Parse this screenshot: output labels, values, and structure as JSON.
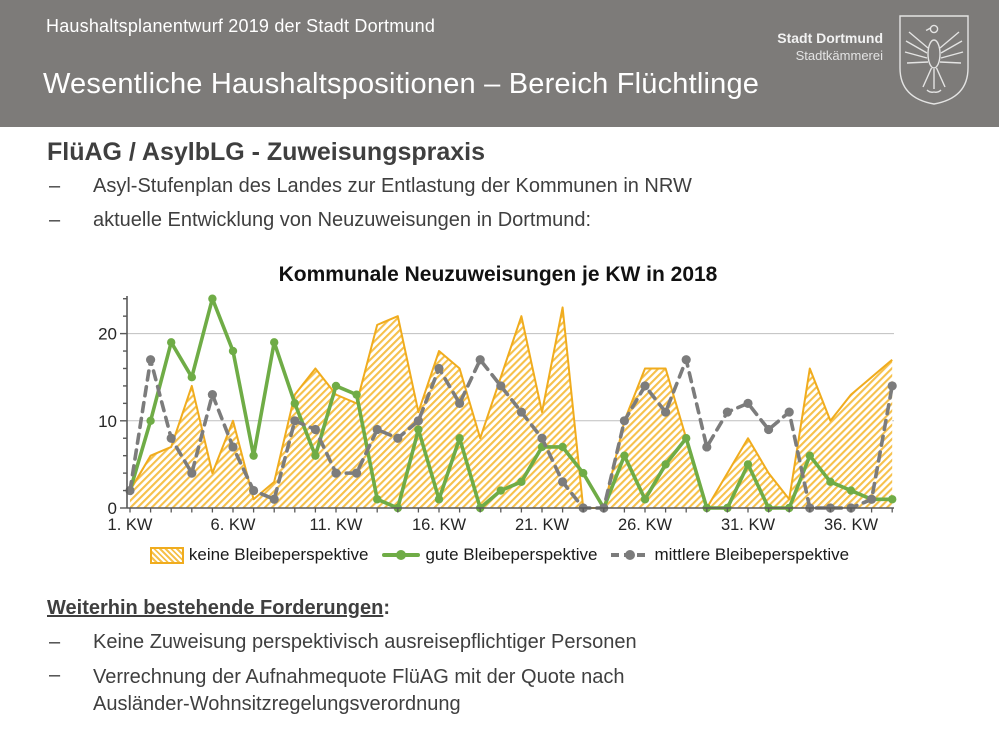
{
  "header": {
    "eyebrow": "Haushaltsplanentwurf 2019 der Stadt Dortmund",
    "title": "Wesentliche Haushaltspositionen – Bereich Flüchtlinge",
    "logo": {
      "line1": "Stadt Dortmund",
      "line2": "Stadtkämmerei",
      "crest_icon": "dortmund-eagle-crest"
    }
  },
  "content": {
    "heading": "FlüAG / AsylbLG - Zuweisungspraxis",
    "bullet_dash": "–",
    "bullets": [
      "Asyl-Stufenplan des Landes zur Entlastung der Kommunen in NRW",
      "aktuelle Entwicklung von Neuzuweisungen in Dortmund:"
    ]
  },
  "chart_data": {
    "type": "area+line",
    "title": "Kommunale Neuzuweisungen je KW in 2018",
    "xlabel": "",
    "ylabel": "",
    "x": [
      1,
      2,
      3,
      4,
      5,
      6,
      7,
      8,
      9,
      10,
      11,
      12,
      13,
      14,
      15,
      16,
      17,
      18,
      19,
      20,
      21,
      22,
      23,
      24,
      25,
      26,
      27,
      28,
      29,
      30,
      31,
      32,
      33,
      34,
      35,
      36,
      37,
      38
    ],
    "x_tick_labels": [
      "1. KW",
      "6. KW",
      "11. KW",
      "16. KW",
      "21. KW",
      "26. KW",
      "31. KW",
      "36. KW"
    ],
    "x_tick_weeks": [
      1,
      6,
      11,
      16,
      21,
      26,
      31,
      36
    ],
    "y_ticks": [
      0,
      10,
      20
    ],
    "y_minor_step": 2,
    "ylim": [
      0,
      24.5
    ],
    "grid_y": [
      10,
      20
    ],
    "grid_color": "#bfbfbf",
    "axis_color": "#595959",
    "legend_position": "bottom",
    "series": [
      {
        "name": "keine Bleibeperspektive",
        "type": "area",
        "style": "hatched",
        "color": "#f0ac1e",
        "hatch_color": "#f6c14b",
        "values": [
          2,
          6,
          7,
          14,
          4,
          10,
          1,
          3,
          13,
          16,
          13,
          12,
          21,
          22,
          11,
          18,
          16,
          8,
          15,
          22,
          11,
          23,
          0,
          0,
          10,
          16,
          16,
          8,
          0,
          4,
          8,
          4,
          1,
          16,
          10,
          13,
          15,
          17
        ]
      },
      {
        "name": "gute Bleibeperspektive",
        "type": "line",
        "style": "solid",
        "color": "#6fac46",
        "values": [
          2,
          10,
          19,
          15,
          24,
          18,
          6,
          19,
          12,
          6,
          14,
          13,
          1,
          0,
          9,
          1,
          8,
          0,
          2,
          3,
          7,
          7,
          4,
          0,
          6,
          1,
          5,
          8,
          0,
          0,
          5,
          0,
          0,
          6,
          3,
          2,
          1,
          1
        ]
      },
      {
        "name": "mittlere Bleibeperspektive",
        "type": "line",
        "style": "dashed",
        "color": "#7c7c7c",
        "values": [
          2,
          17,
          8,
          4,
          13,
          7,
          2,
          1,
          10,
          9,
          4,
          4,
          9,
          8,
          10,
          16,
          12,
          17,
          14,
          11,
          8,
          3,
          0,
          0,
          10,
          14,
          11,
          17,
          7,
          11,
          12,
          9,
          11,
          0,
          0,
          0,
          1,
          14
        ]
      }
    ]
  },
  "forderungen": {
    "heading_text": "Weiterhin bestehende Forderungen",
    "heading_colon": ":",
    "bullets": [
      "Keine Zuweisung perspektivisch ausreisepflichtiger Personen",
      "Verrechnung der Aufnahmequote FlüAG mit der Quote nach Ausländer-Wohnsitzregelungsverordnung"
    ]
  },
  "colors": {
    "header_bg": "#7d7b79",
    "body_text": "#3f3f3f"
  }
}
